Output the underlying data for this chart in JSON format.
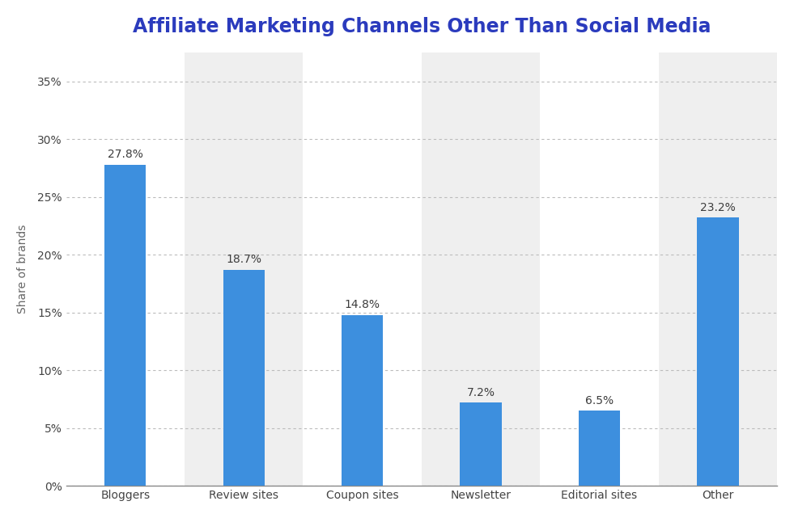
{
  "title": "Affiliate Marketing Channels Other Than Social Media",
  "categories": [
    "Bloggers",
    "Review sites",
    "Coupon sites",
    "Newsletter",
    "Editorial sites",
    "Other"
  ],
  "values": [
    27.8,
    18.7,
    14.8,
    7.2,
    6.5,
    23.2
  ],
  "bar_color": "#3d8fde",
  "label_color": "#3d3d3d",
  "title_color": "#2b3bbd",
  "ylabel": "Share of brands",
  "yticks": [
    0,
    5,
    10,
    15,
    20,
    25,
    30,
    35
  ],
  "ylim": [
    0,
    37.5
  ],
  "background_color": "#ffffff",
  "plot_bg_color": "#ffffff",
  "col_shade_color": "#efefef",
  "grid_color": "#bbbbbb",
  "title_fontsize": 17,
  "label_fontsize": 10,
  "tick_fontsize": 10,
  "ylabel_fontsize": 10
}
